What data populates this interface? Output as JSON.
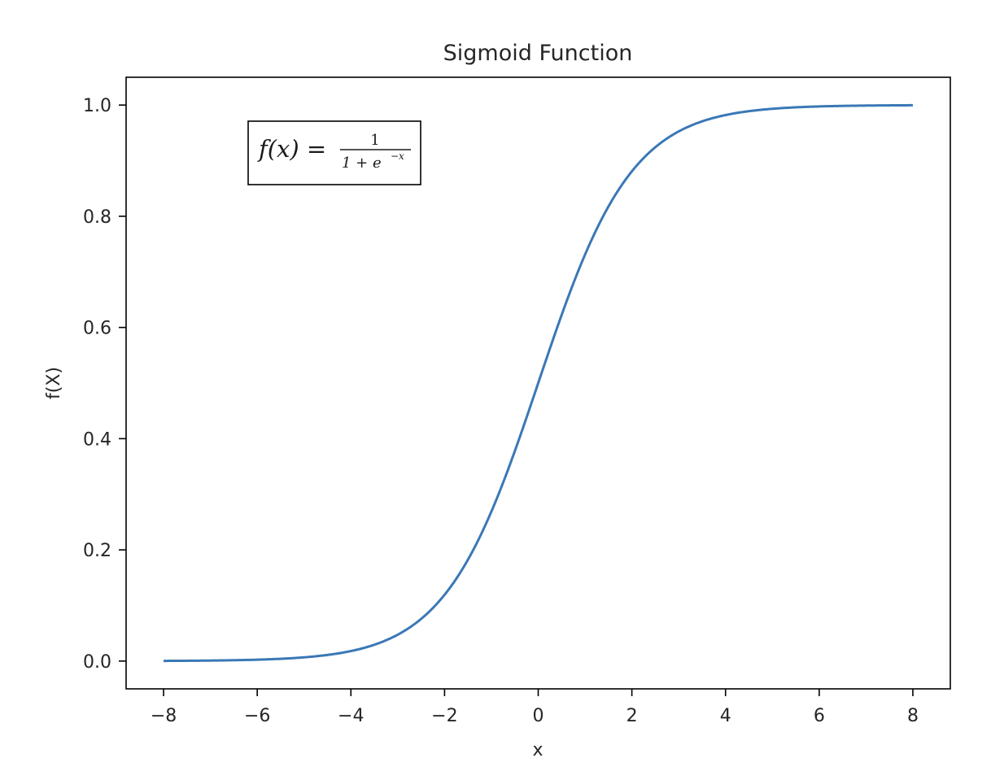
{
  "chart_data": {
    "type": "line",
    "title": "Sigmoid Function",
    "xlabel": "x",
    "ylabel": "f(X)",
    "xlim": [
      -8.8,
      8.8
    ],
    "ylim": [
      -0.05,
      1.05
    ],
    "xticks": [
      -8,
      -6,
      -4,
      -2,
      0,
      2,
      4,
      6,
      8
    ],
    "xtick_labels": [
      "−8",
      "−6",
      "−4",
      "−2",
      "0",
      "2",
      "4",
      "6",
      "8"
    ],
    "yticks": [
      0.0,
      0.2,
      0.4,
      0.6,
      0.8,
      1.0
    ],
    "ytick_labels": [
      "0.0",
      "0.2",
      "0.4",
      "0.6",
      "0.8",
      "1.0"
    ],
    "grid": false,
    "series": [
      {
        "function": "1/(1+exp(-x))",
        "x_range": [
          -8,
          8
        ],
        "color": "#3a78b6"
      }
    ],
    "annotation": {
      "lhs": "f(x) =",
      "numerator": "1",
      "denominator": "1 + e",
      "exponent": "−x",
      "position": "top-left"
    }
  }
}
